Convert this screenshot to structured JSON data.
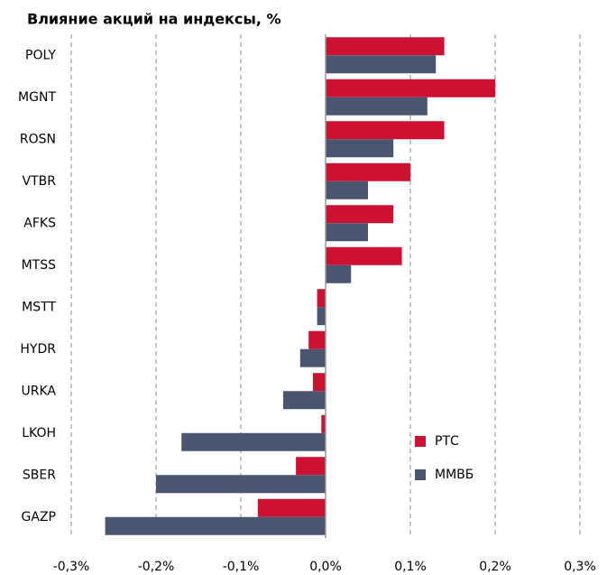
{
  "chart_data": {
    "type": "hbar",
    "title": "Влияние акций на индексы, %",
    "categories": [
      "POLY",
      "MGNT",
      "ROSN",
      "VTBR",
      "AFKS",
      "MTSS",
      "MSTT",
      "HYDR",
      "URKA",
      "LKOH",
      "SBER",
      "GAZP"
    ],
    "series": [
      {
        "name": "РТС",
        "color": "#cc1133",
        "values": [
          0.14,
          0.2,
          0.14,
          0.1,
          0.08,
          0.09,
          -0.01,
          -0.02,
          -0.015,
          -0.005,
          -0.035,
          -0.08
        ]
      },
      {
        "name": "ММВБ",
        "color": "#4a5670",
        "values": [
          0.13,
          0.12,
          0.08,
          0.05,
          0.05,
          0.03,
          -0.01,
          -0.03,
          -0.05,
          -0.17,
          -0.2,
          -0.26
        ]
      }
    ],
    "xlim": [
      -0.3,
      0.3
    ],
    "xticks": [
      {
        "value": -0.3,
        "label": "-0,3%"
      },
      {
        "value": -0.2,
        "label": "-0,2%"
      },
      {
        "value": -0.1,
        "label": "-0,1%"
      },
      {
        "value": 0,
        "label": "0,0%"
      },
      {
        "value": 0.1,
        "label": "0,1%"
      },
      {
        "value": 0.2,
        "label": "0,2%"
      },
      {
        "value": 0.3,
        "label": "0,3%"
      }
    ],
    "grid": true,
    "legend": "lower right"
  }
}
